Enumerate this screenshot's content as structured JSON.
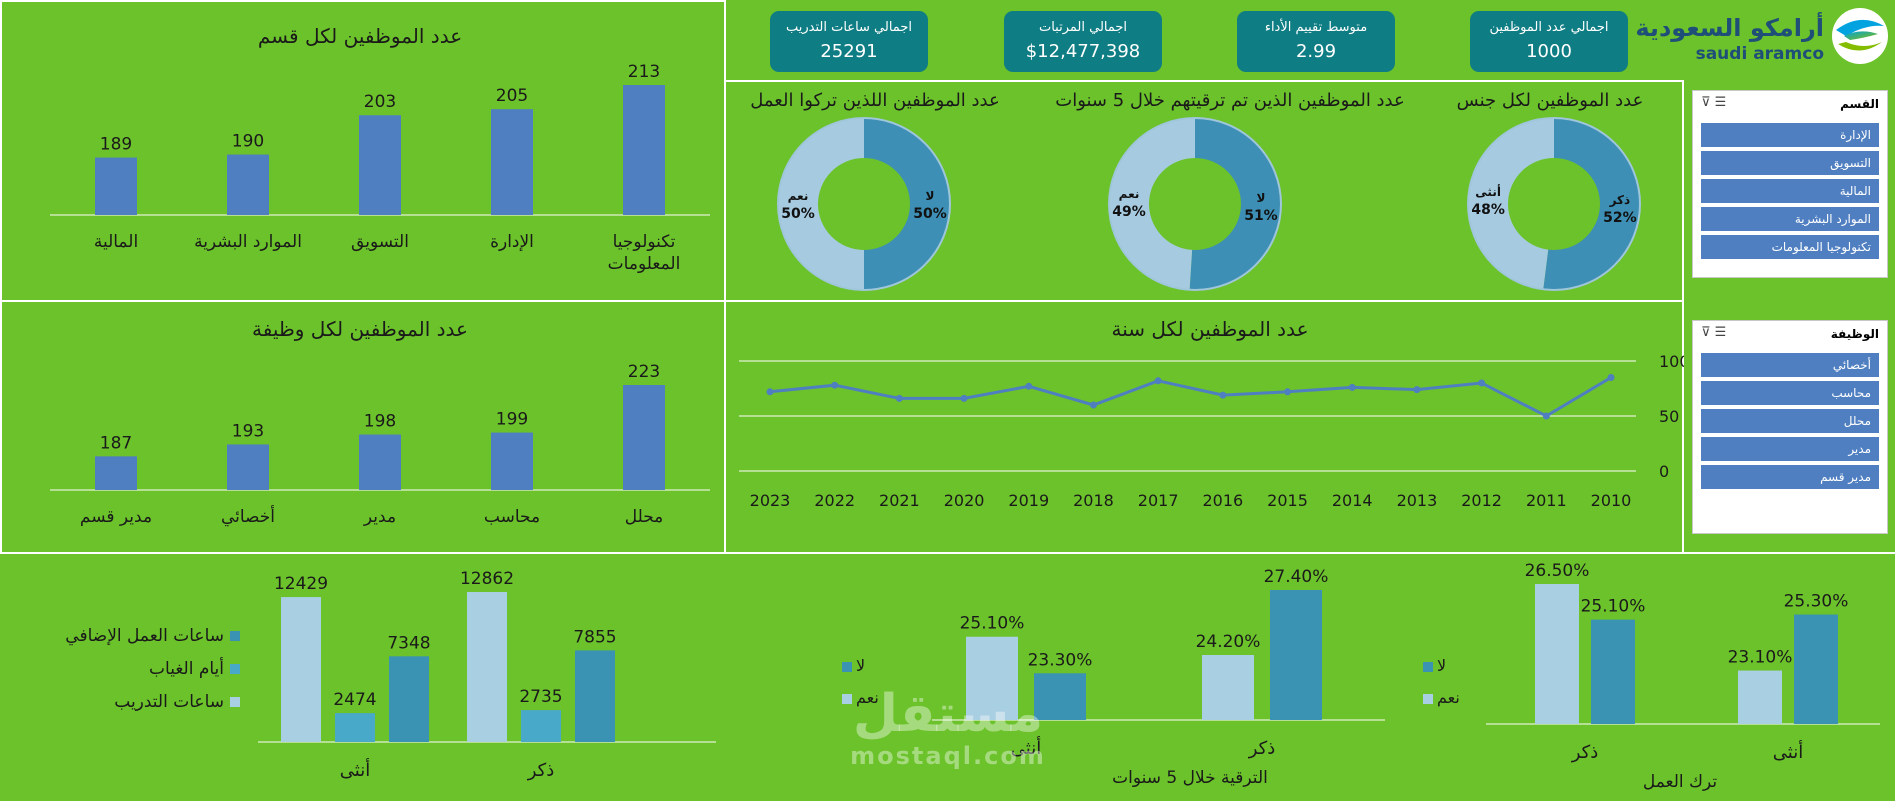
{
  "logo": {
    "arabic": "أرامكو السعودية",
    "latin": "saudi aramco"
  },
  "kpis": [
    {
      "label": "اجمالي عدد الموظفين",
      "value": "1000"
    },
    {
      "label": "متوسط تقييم الأداء",
      "value": "2.99"
    },
    {
      "label": "اجمالي المرتبات",
      "value": "$12,477,398"
    },
    {
      "label": "اجمالي ساعات التدريب",
      "value": "25291"
    }
  ],
  "slicer_dept": {
    "title": "القسم",
    "items": [
      "الإدارة",
      "التسويق",
      "المالية",
      "الموارد البشرية",
      "تكنولوجيا المعلومات"
    ]
  },
  "slicer_job": {
    "title": "الوظيفة",
    "items": [
      "أخصائي",
      "محاسب",
      "محلل",
      "مدير",
      "مدير قسم"
    ]
  },
  "colors": {
    "bar": "#4f7fc1",
    "donut_dark": "#3d8fb5",
    "donut_light": "#a6cbe0",
    "pale": "#a9cfe2",
    "mid": "#48a9c9",
    "dark": "#3a93b3"
  },
  "chart_data": [
    {
      "id": "dept",
      "type": "bar",
      "title": "عدد  الموظفين لكل قسم",
      "categories": [
        "تكنولوجيا المعلومات",
        "الإدارة",
        "التسويق",
        "الموارد البشرية",
        "المالية"
      ],
      "values": [
        213,
        205,
        203,
        190,
        189
      ]
    },
    {
      "id": "job",
      "type": "bar",
      "title": "عدد الموظفين لكل وظيفة",
      "categories": [
        "محلل",
        "محاسب",
        "مدير",
        "أخصائي",
        "مدير قسم"
      ],
      "values": [
        223,
        199,
        198,
        193,
        187
      ]
    },
    {
      "id": "gender",
      "type": "pie",
      "title": "عدد الموظفين لكل جنس",
      "labels": [
        "ذكر",
        "أنثى"
      ],
      "values": [
        52,
        48
      ],
      "value_labels": [
        "52%",
        "48%"
      ]
    },
    {
      "id": "promo",
      "type": "pie",
      "title": "عدد الموظفين الذين تم ترقيتهم خلال 5 سنوات",
      "labels": [
        "لا",
        "نعم"
      ],
      "values": [
        51,
        49
      ],
      "value_labels": [
        "51%",
        "49%"
      ]
    },
    {
      "id": "left",
      "type": "pie",
      "title": "عدد الموظفين اللذين تركوا العمل",
      "labels": [
        "لا",
        "نعم"
      ],
      "values": [
        50,
        50
      ],
      "value_labels": [
        "50%",
        "50%"
      ]
    },
    {
      "id": "years",
      "type": "line",
      "title": "عدد الموظفين لكل سنة",
      "x": [
        "2010",
        "2011",
        "2012",
        "2013",
        "2014",
        "2015",
        "2016",
        "2017",
        "2018",
        "2019",
        "2020",
        "2021",
        "2022",
        "2023"
      ],
      "values": [
        85,
        50,
        80,
        74,
        76,
        72,
        69,
        82,
        60,
        77,
        66,
        66,
        78,
        72
      ],
      "yticks": [
        "0",
        "50",
        "100"
      ],
      "ylim": [
        0,
        100
      ]
    },
    {
      "id": "hours",
      "type": "bar",
      "categories": [
        "ذكر",
        "أنثى"
      ],
      "series": [
        {
          "name": "ساعات التدريب",
          "values": [
            12862,
            12429
          ]
        },
        {
          "name": "أيام الغياب",
          "values": [
            2735,
            2474
          ]
        },
        {
          "name": "ساعات العمل الإضافي",
          "values": [
            7855,
            7348
          ]
        }
      ]
    },
    {
      "id": "promo_gender",
      "type": "bar",
      "xlabel": "الترقية خلال 5 سنوات",
      "categories": [
        "ذكر",
        "أنثى"
      ],
      "series": [
        {
          "name": "نعم",
          "values": [
            24.2,
            25.1
          ],
          "labels": [
            "24.20%",
            "25.10%"
          ]
        },
        {
          "name": "لا",
          "values": [
            27.4,
            23.3
          ],
          "labels": [
            "27.40%",
            "23.30%"
          ]
        }
      ]
    },
    {
      "id": "left_gender",
      "type": "bar",
      "xlabel": "ترك العمل",
      "categories": [
        "أنثى",
        "ذكر"
      ],
      "series": [
        {
          "name": "نعم",
          "values": [
            23.1,
            26.5
          ],
          "labels": [
            "23.10%",
            "26.50%"
          ]
        },
        {
          "name": "لا",
          "values": [
            25.3,
            25.1
          ],
          "labels": [
            "25.30%",
            "25.10%"
          ]
        }
      ]
    }
  ],
  "watermark": {
    "arabic": "مستقل",
    "latin": "mostaql.com"
  }
}
